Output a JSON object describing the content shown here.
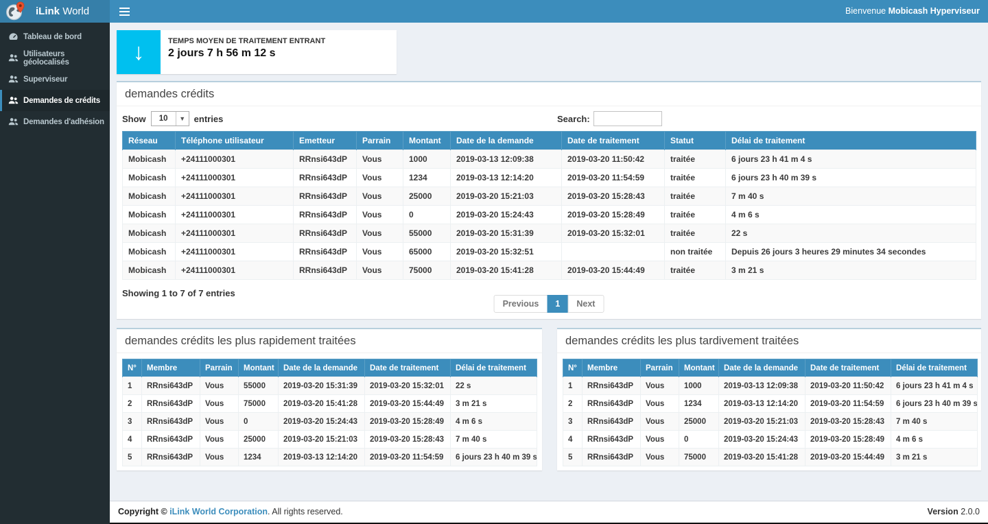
{
  "brand": {
    "bold": "iLink",
    "light": "World",
    "logo_icon": "globe-pin-icon"
  },
  "header": {
    "hamburger_icon": "menu-icon",
    "welcome_prefix": "Bienvenue",
    "welcome_user": "Mobicash Hyperviseur"
  },
  "sidebar": {
    "items": [
      {
        "label": "Tableau de bord",
        "icon": "dashboard-icon",
        "active": false
      },
      {
        "label": "Utilisateurs géolocalisés",
        "icon": "users-icon",
        "active": false
      },
      {
        "label": "Superviseur",
        "icon": "users-icon",
        "active": false
      },
      {
        "label": "Demandes de crédits",
        "icon": "users-icon",
        "active": true
      },
      {
        "label": "Demandes d'adhésion",
        "icon": "users-icon",
        "active": false
      }
    ]
  },
  "stat_box": {
    "icon": "arrow-down-icon",
    "glyph": "↓",
    "label": "TEMPS MOYEN DE TRAITEMENT ENTRANT",
    "value": "2 jours 7 h 56 m 12 s"
  },
  "main_panel": {
    "title": "demandes crédits",
    "show_label": "Show",
    "page_size": "10",
    "entries_label": "entries",
    "search_label": "Search:",
    "search_value": "",
    "columns": [
      "Réseau",
      "Téléphone utilisateur",
      "Emetteur",
      "Parrain",
      "Montant",
      "Date de la demande",
      "Date de traitement",
      "Statut",
      "Délai de traitement"
    ],
    "rows": [
      [
        "Mobicash",
        "+24111000301",
        "RRnsi643dP",
        "Vous",
        "1000",
        "2019-03-13 12:09:38",
        "2019-03-20 11:50:42",
        "traitée",
        "6 jours 23 h 41 m 4 s"
      ],
      [
        "Mobicash",
        "+24111000301",
        "RRnsi643dP",
        "Vous",
        "1234",
        "2019-03-13 12:14:20",
        "2019-03-20 11:54:59",
        "traitée",
        "6 jours 23 h 40 m 39 s"
      ],
      [
        "Mobicash",
        "+24111000301",
        "RRnsi643dP",
        "Vous",
        "25000",
        "2019-03-20 15:21:03",
        "2019-03-20 15:28:43",
        "traitée",
        "7 m 40 s"
      ],
      [
        "Mobicash",
        "+24111000301",
        "RRnsi643dP",
        "Vous",
        "0",
        "2019-03-20 15:24:43",
        "2019-03-20 15:28:49",
        "traitée",
        "4 m 6 s"
      ],
      [
        "Mobicash",
        "+24111000301",
        "RRnsi643dP",
        "Vous",
        "55000",
        "2019-03-20 15:31:39",
        "2019-03-20 15:32:01",
        "traitée",
        "22 s"
      ],
      [
        "Mobicash",
        "+24111000301",
        "RRnsi643dP",
        "Vous",
        "65000",
        "2019-03-20 15:32:51",
        "",
        "non traitée",
        "Depuis 26 jours 3 heures 29 minutes 34 secondes"
      ],
      [
        "Mobicash",
        "+24111000301",
        "RRnsi643dP",
        "Vous",
        "75000",
        "2019-03-20 15:41:28",
        "2019-03-20 15:44:49",
        "traitée",
        "3 m 21 s"
      ]
    ],
    "summary": "Showing 1 to 7 of 7 entries",
    "pagination": {
      "previous": "Previous",
      "page": "1",
      "next": "Next"
    }
  },
  "fast_panel": {
    "title": "demandes crédits les plus rapidement traitées",
    "columns": [
      "N°",
      "Membre",
      "Parrain",
      "Montant",
      "Date de la demande",
      "Date de traitement",
      "Délai de traitement"
    ],
    "rows": [
      [
        "1",
        "RRnsi643dP",
        "Vous",
        "55000",
        "2019-03-20 15:31:39",
        "2019-03-20 15:32:01",
        "22 s"
      ],
      [
        "2",
        "RRnsi643dP",
        "Vous",
        "75000",
        "2019-03-20 15:41:28",
        "2019-03-20 15:44:49",
        "3 m 21 s"
      ],
      [
        "3",
        "RRnsi643dP",
        "Vous",
        "0",
        "2019-03-20 15:24:43",
        "2019-03-20 15:28:49",
        "4 m 6 s"
      ],
      [
        "4",
        "RRnsi643dP",
        "Vous",
        "25000",
        "2019-03-20 15:21:03",
        "2019-03-20 15:28:43",
        "7 m 40 s"
      ],
      [
        "5",
        "RRnsi643dP",
        "Vous",
        "1234",
        "2019-03-13 12:14:20",
        "2019-03-20 11:54:59",
        "6 jours 23 h 40 m 39 s"
      ]
    ]
  },
  "late_panel": {
    "title": "demandes crédits les plus tardivement traitées",
    "columns": [
      "N°",
      "Membre",
      "Parrain",
      "Montant",
      "Date de la demande",
      "Date de traitement",
      "Délai de traitement"
    ],
    "rows": [
      [
        "1",
        "RRnsi643dP",
        "Vous",
        "1000",
        "2019-03-13 12:09:38",
        "2019-03-20 11:50:42",
        "6 jours 23 h 41 m 4 s"
      ],
      [
        "2",
        "RRnsi643dP",
        "Vous",
        "1234",
        "2019-03-13 12:14:20",
        "2019-03-20 11:54:59",
        "6 jours 23 h 40 m 39 s"
      ],
      [
        "3",
        "RRnsi643dP",
        "Vous",
        "25000",
        "2019-03-20 15:21:03",
        "2019-03-20 15:28:43",
        "7 m 40 s"
      ],
      [
        "4",
        "RRnsi643dP",
        "Vous",
        "0",
        "2019-03-20 15:24:43",
        "2019-03-20 15:28:49",
        "4 m 6 s"
      ],
      [
        "5",
        "RRnsi643dP",
        "Vous",
        "75000",
        "2019-03-20 15:41:28",
        "2019-03-20 15:44:49",
        "3 m 21 s"
      ]
    ]
  },
  "footer": {
    "copyright_prefix": "Copyright © ",
    "link": "iLink World Corporation",
    "suffix": ". All rights reserved.",
    "version_label": "Version",
    "version_value": " 2.0.0"
  },
  "colors": {
    "accent_blue": "#3c8dbc",
    "logo_blue": "#367fa9",
    "sidebar_dark": "#222d32",
    "active_item_dark": "#1e282c",
    "info_cyan": "#00c0ef",
    "content_bg": "#ecf0f5",
    "stripe_gray": "#f9f9f9"
  }
}
